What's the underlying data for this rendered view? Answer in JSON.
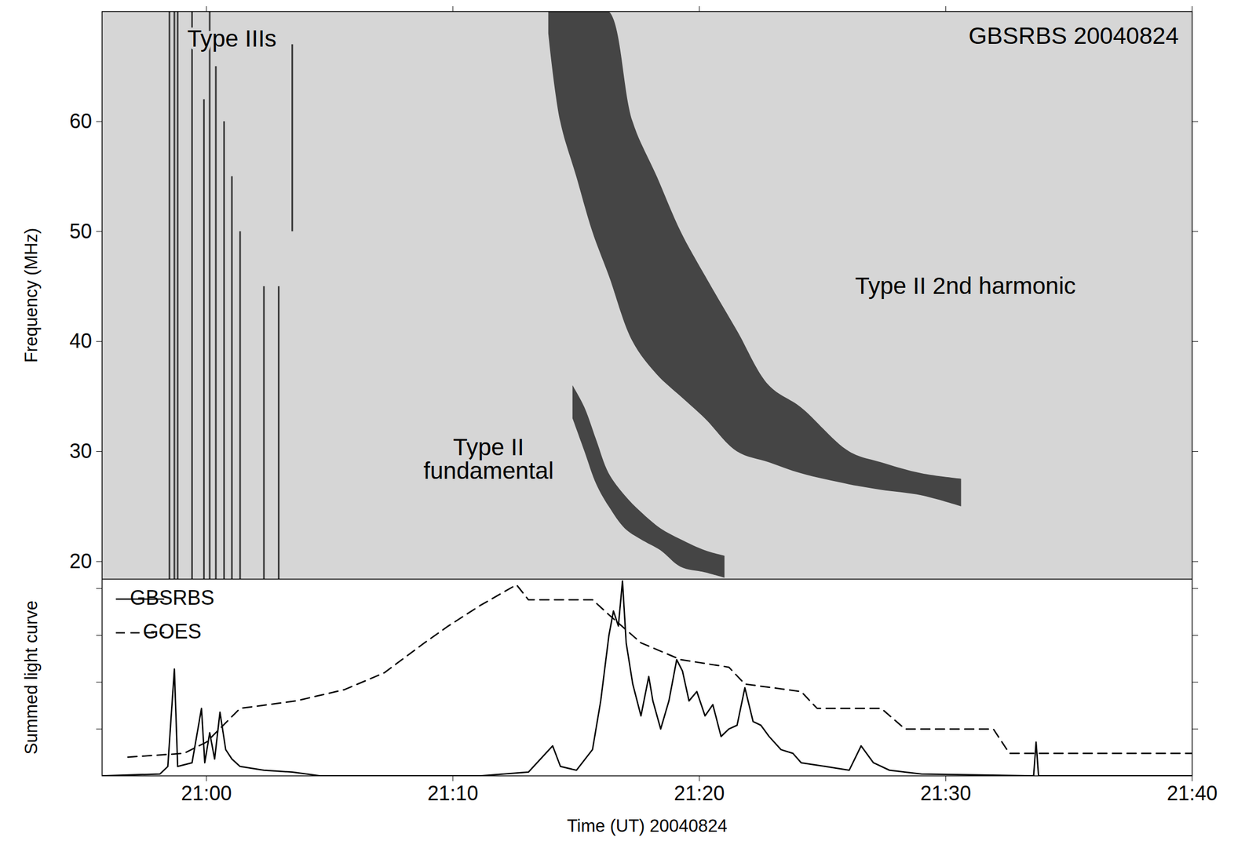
{
  "chart_data": [
    {
      "type": "dynamic_spectrum",
      "title": "GBSRBS 20040824",
      "y_label": "Frequency (MHz)",
      "xlim": [
        "20:55:46",
        "21:40:00"
      ],
      "xticks": [
        {
          "value": "21:00:00",
          "label": "21:00"
        },
        {
          "value": "21:10:00",
          "label": "21:10"
        },
        {
          "value": "21:20:00",
          "label": "21:20"
        },
        {
          "value": "21:30:00",
          "label": "21:30"
        },
        {
          "value": "21:40:00",
          "label": "21:40"
        }
      ],
      "ylim": [
        18.4,
        70
      ],
      "yticks": [
        20,
        30,
        40,
        50,
        60
      ],
      "tick_labels": "y",
      "series": [
        {
          "name": "Type IIIs",
          "type": "rule",
          "color": "#3c3c3c",
          "annotation": {
            "x": "21:01:02",
            "y": 67.5
          },
          "x": [
            "20:58:30",
            "20:58:42",
            "20:58:50",
            "20:59:25",
            "20:59:54",
            "21:00:08",
            "21:00:23",
            "21:00:43",
            "21:01:02",
            "21:01:22",
            "21:02:20",
            "21:02:56",
            "21:03:29"
          ],
          "low": [
            18.4,
            18.4,
            18.4,
            18.4,
            18.4,
            18.4,
            18.4,
            18.4,
            18.4,
            18.4,
            18.4,
            18.4,
            50
          ],
          "high": [
            70,
            70,
            70,
            70,
            62,
            70,
            65,
            60,
            55,
            50,
            45,
            45,
            67
          ]
        },
        {
          "name": "Type II\nfundamental",
          "type": "area",
          "color": "#2b2b2b",
          "annotation": {
            "x": "21:11:27",
            "y": 29.3
          },
          "x": [
            "21:14:52",
            "21:15:21",
            "21:15:50",
            "21:16:20",
            "21:16:59",
            "21:17:38",
            "21:18:26",
            "21:19:15",
            "21:20:14",
            "21:21:02"
          ],
          "low": [
            33,
            30,
            27,
            25,
            23,
            22,
            21,
            19.5,
            19,
            18.5
          ],
          "high": [
            36,
            34,
            31,
            28,
            26,
            24.5,
            23,
            22,
            21,
            20.5
          ]
        },
        {
          "name": "Type II 2nd harmonic",
          "type": "area",
          "color": "#2b2b2b",
          "annotation": {
            "x": "21:30:48",
            "y": 45
          },
          "x": [
            "21:13:53",
            "21:14:22",
            "21:15:01",
            "21:15:40",
            "21:16:20",
            "21:17:18",
            "21:18:17",
            "21:19:15",
            "21:20:14",
            "21:21:32",
            "21:22:50",
            "21:24:08",
            "21:26:05",
            "21:27:23",
            "21:29:01",
            "21:30:38"
          ],
          "low": [
            68,
            60,
            55,
            50,
            46,
            40,
            37,
            35,
            33,
            30,
            29,
            28,
            27,
            26.5,
            26,
            25
          ],
          "high": [
            70,
            70,
            70,
            70,
            70,
            60,
            55,
            50,
            46,
            41,
            36,
            34,
            30,
            29,
            28,
            27.5
          ]
        }
      ]
    },
    {
      "type": "line",
      "x_label": "Time (UT) 20040824",
      "y_label": "Summed light curve",
      "xlim": [
        "20:55:46",
        "21:40:00"
      ],
      "xticks": [
        {
          "value": "21:00:00",
          "label": "21:00"
        },
        {
          "value": "21:10:00",
          "label": "21:10"
        },
        {
          "value": "21:20:00",
          "label": "21:20"
        },
        {
          "value": "21:30:00",
          "label": "21:30"
        },
        {
          "value": "21:40:00",
          "label": "21:40"
        }
      ],
      "ylim": [
        0,
        1.05
      ],
      "yticks": [
        0.25,
        0.5,
        0.75,
        1
      ],
      "tick_labels": "x",
      "legend": "top-left",
      "series": [
        {
          "name": "GBSRBS",
          "color": "#000000",
          "line_style": "solid",
          "x": [
            "20:55:46",
            "20:58:07",
            "20:58:26",
            "20:58:42",
            "20:58:50",
            "20:59:25",
            "20:59:48",
            "20:59:56",
            "21:00:08",
            "21:00:20",
            "21:00:33",
            "21:00:47",
            "21:01:02",
            "21:01:22",
            "21:02:20",
            "21:03:29",
            "21:04:37",
            "21:11:07",
            "21:13:04",
            "21:14:03",
            "21:14:22",
            "21:15:01",
            "21:15:40",
            "21:16:00",
            "21:16:20",
            "21:16:31",
            "21:16:43",
            "21:16:53",
            "21:17:02",
            "21:17:18",
            "21:17:38",
            "21:17:57",
            "21:18:07",
            "21:18:26",
            "21:18:46",
            "21:19:05",
            "21:19:19",
            "21:19:35",
            "21:19:54",
            "21:20:14",
            "21:20:33",
            "21:20:53",
            "21:21:12",
            "21:21:32",
            "21:21:51",
            "21:22:11",
            "21:22:30",
            "21:22:50",
            "21:23:19",
            "21:23:48",
            "21:24:08",
            "21:25:07",
            "21:26:05",
            "21:26:34",
            "21:27:04",
            "21:27:43",
            "21:29:01",
            "21:33:34",
            "21:33:40",
            "21:33:46",
            "21:36:29",
            "21:40:00"
          ],
          "values": [
            0,
            0.01,
            0.05,
            0.57,
            0.05,
            0.07,
            0.36,
            0.07,
            0.23,
            0.09,
            0.34,
            0.14,
            0.09,
            0.05,
            0.03,
            0.02,
            0,
            0,
            0.02,
            0.16,
            0.05,
            0.03,
            0.14,
            0.4,
            0.75,
            0.88,
            0.8,
            1.04,
            0.71,
            0.49,
            0.32,
            0.53,
            0.4,
            0.25,
            0.4,
            0.62,
            0.56,
            0.4,
            0.45,
            0.32,
            0.38,
            0.21,
            0.25,
            0.27,
            0.47,
            0.29,
            0.27,
            0.21,
            0.14,
            0.12,
            0.07,
            0.05,
            0.03,
            0.16,
            0.07,
            0.03,
            0.01,
            0,
            0.18,
            0,
            0,
            0
          ]
        },
        {
          "name": "GOES",
          "color": "#000000",
          "line_style": "dashed",
          "x": [
            "20:56:49",
            "20:59:05",
            "21:00:00",
            "21:01:22",
            "21:03:38",
            "21:05:36",
            "21:07:13",
            "21:08:51",
            "21:09:49",
            "21:11:07",
            "21:12:35",
            "21:13:04",
            "21:15:40",
            "21:16:20",
            "21:17:38",
            "21:19:15",
            "21:21:12",
            "21:21:51",
            "21:24:08",
            "21:24:47",
            "21:27:23",
            "21:28:21",
            "21:31:56",
            "21:32:35",
            "21:40:00"
          ],
          "values": [
            0.1,
            0.12,
            0.18,
            0.36,
            0.4,
            0.46,
            0.55,
            0.71,
            0.8,
            0.91,
            1.02,
            0.94,
            0.94,
            0.86,
            0.71,
            0.62,
            0.58,
            0.49,
            0.45,
            0.36,
            0.36,
            0.25,
            0.25,
            0.12,
            0.12
          ]
        }
      ]
    }
  ]
}
